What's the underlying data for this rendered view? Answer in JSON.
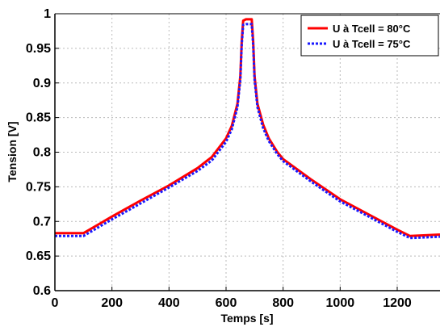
{
  "chart_data": {
    "type": "line",
    "title": "",
    "xlabel": "Temps [s]",
    "ylabel": "Tension [V]",
    "xlim": [
      0,
      1350
    ],
    "ylim": [
      0.6,
      1.0
    ],
    "xticks": [
      0,
      200,
      400,
      600,
      800,
      1000,
      1200
    ],
    "yticks": [
      0.6,
      0.65,
      0.7,
      0.75,
      0.8,
      0.85,
      0.9,
      0.95,
      1
    ],
    "xtick_labels": [
      "0",
      "200",
      "400",
      "600",
      "800",
      "1000",
      "1200"
    ],
    "ytick_labels": [
      "0.6",
      "0.65",
      "0.7",
      "0.75",
      "0.8",
      "0.85",
      "0.9",
      "0.95",
      "1"
    ],
    "grid": true,
    "legend_position": "top-right",
    "series": [
      {
        "name": "U à Tcell = 80°C",
        "color": "#ff0000",
        "style": "solid",
        "x": [
          0,
          100,
          200,
          300,
          400,
          500,
          550,
          600,
          620,
          640,
          650,
          655,
          660,
          670,
          690,
          695,
          700,
          710,
          730,
          750,
          780,
          800,
          900,
          1000,
          1100,
          1200,
          1245,
          1300,
          1350
        ],
        "y": [
          0.683,
          0.683,
          0.707,
          0.73,
          0.752,
          0.777,
          0.793,
          0.82,
          0.838,
          0.87,
          0.91,
          0.96,
          0.99,
          0.992,
          0.992,
          0.96,
          0.91,
          0.87,
          0.84,
          0.82,
          0.8,
          0.79,
          0.76,
          0.732,
          0.71,
          0.688,
          0.679,
          0.68,
          0.681
        ]
      },
      {
        "name": "U à Tcell = 75°C",
        "color": "#1a1aff",
        "style": "dotted",
        "x": [
          0,
          100,
          200,
          300,
          400,
          500,
          550,
          600,
          620,
          640,
          650,
          655,
          660,
          670,
          690,
          695,
          700,
          710,
          730,
          750,
          780,
          800,
          900,
          1000,
          1100,
          1200,
          1245,
          1300,
          1350
        ],
        "y": [
          0.679,
          0.679,
          0.703,
          0.726,
          0.749,
          0.773,
          0.788,
          0.815,
          0.833,
          0.865,
          0.905,
          0.955,
          0.984,
          0.985,
          0.985,
          0.955,
          0.905,
          0.865,
          0.835,
          0.816,
          0.797,
          0.787,
          0.757,
          0.729,
          0.707,
          0.685,
          0.676,
          0.677,
          0.678
        ]
      }
    ]
  }
}
